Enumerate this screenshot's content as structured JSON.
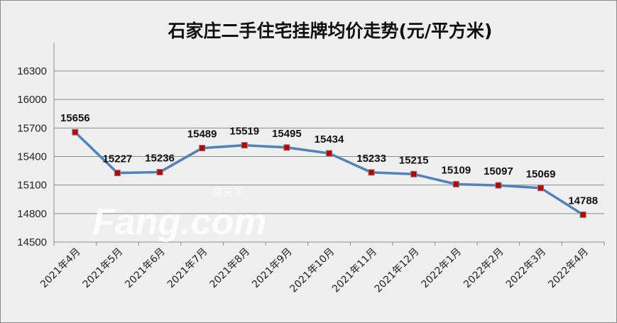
{
  "chart_data": {
    "type": "line",
    "title": "石家庄二手住宅挂牌均价走势(元/平方米)",
    "xlabel": "",
    "ylabel": "",
    "categories": [
      "2021年4月",
      "2021年5月",
      "2021年6月",
      "2021年7月",
      "2021年8月",
      "2021年9月",
      "2021年10月",
      "2021年11月",
      "2021年12月",
      "2022年1月",
      "2022年2月",
      "2022年3月",
      "2022年4月"
    ],
    "series": [
      {
        "name": "挂牌均价",
        "values": [
          15656,
          15227,
          15236,
          15489,
          15519,
          15495,
          15434,
          15233,
          15215,
          15109,
          15097,
          15069,
          14788
        ]
      }
    ],
    "ylim": [
      14500,
      16300
    ],
    "yticks": [
      14500,
      14800,
      15100,
      15400,
      15700,
      16000,
      16300
    ],
    "grid": true,
    "legend": "none",
    "colors": {
      "line": "#4f81bd",
      "marker": "#c00000",
      "marker_border": "#7f7f7f"
    }
  },
  "watermark": {
    "brand": "Fang.com",
    "sub": "房天下"
  }
}
